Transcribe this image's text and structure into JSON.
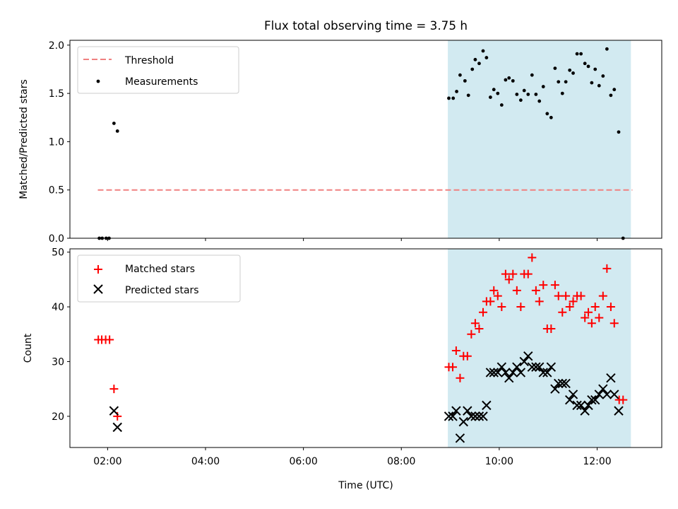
{
  "figure": {
    "title": "Flux total observing time = 3.75 h",
    "xlabel": "Time (UTC)",
    "x_ticks": [
      {
        "h": 2,
        "label": "02:00"
      },
      {
        "h": 4,
        "label": "04:00"
      },
      {
        "h": 6,
        "label": "06:00"
      },
      {
        "h": 8,
        "label": "08:00"
      },
      {
        "h": 10,
        "label": "10:00"
      },
      {
        "h": 12,
        "label": "12:00"
      }
    ],
    "xlim": [
      1.23,
      13.32
    ],
    "observing_window": {
      "start": 8.95,
      "end": 12.69,
      "color": "#add8e6"
    }
  },
  "chart_data": [
    {
      "type": "scatter",
      "id": "ratio",
      "ylabel": "Matched/Predicted stars",
      "ylim": [
        0,
        2.05
      ],
      "y_ticks": [
        {
          "v": 0,
          "label": "0.0"
        },
        {
          "v": 0.5,
          "label": "0.5"
        },
        {
          "v": 1,
          "label": "1.0"
        },
        {
          "v": 1.5,
          "label": "1.5"
        },
        {
          "v": 2,
          "label": "2.0"
        }
      ],
      "legend": {
        "position": "top-left",
        "threshold_label": "Threshold",
        "measurements_label": "Measurements"
      },
      "threshold": {
        "value": 0.5,
        "x_start": 1.8,
        "x_end": 12.72,
        "color": "#f08080"
      },
      "measurements": [
        [
          1.83,
          0
        ],
        [
          1.89,
          0
        ],
        [
          1.97,
          0
        ],
        [
          2.03,
          0
        ],
        [
          2.13,
          1.19
        ],
        [
          2.2,
          1.11
        ],
        [
          8.97,
          1.45
        ],
        [
          9.06,
          1.45
        ],
        [
          9.13,
          1.52
        ],
        [
          9.2,
          1.69
        ],
        [
          9.3,
          1.63
        ],
        [
          9.37,
          1.48
        ],
        [
          9.45,
          1.75
        ],
        [
          9.51,
          1.85
        ],
        [
          9.59,
          1.81
        ],
        [
          9.67,
          1.94
        ],
        [
          9.74,
          1.87
        ],
        [
          9.82,
          1.46
        ],
        [
          9.89,
          1.54
        ],
        [
          9.97,
          1.5
        ],
        [
          10.05,
          1.38
        ],
        [
          10.13,
          1.64
        ],
        [
          10.2,
          1.66
        ],
        [
          10.28,
          1.63
        ],
        [
          10.36,
          1.49
        ],
        [
          10.44,
          1.43
        ],
        [
          10.51,
          1.53
        ],
        [
          10.59,
          1.49
        ],
        [
          10.67,
          1.69
        ],
        [
          10.75,
          1.49
        ],
        [
          10.82,
          1.42
        ],
        [
          10.9,
          1.57
        ],
        [
          10.98,
          1.29
        ],
        [
          11.06,
          1.25
        ],
        [
          11.14,
          1.76
        ],
        [
          11.21,
          1.62
        ],
        [
          11.29,
          1.5
        ],
        [
          11.36,
          1.62
        ],
        [
          11.44,
          1.74
        ],
        [
          11.51,
          1.71
        ],
        [
          11.59,
          1.91
        ],
        [
          11.67,
          1.91
        ],
        [
          11.75,
          1.81
        ],
        [
          11.82,
          1.78
        ],
        [
          11.89,
          1.61
        ],
        [
          11.96,
          1.75
        ],
        [
          12.04,
          1.58
        ],
        [
          12.12,
          1.68
        ],
        [
          12.2,
          1.96
        ],
        [
          12.28,
          1.48
        ],
        [
          12.35,
          1.54
        ],
        [
          12.44,
          1.1
        ],
        [
          12.53,
          0
        ]
      ]
    },
    {
      "type": "scatter",
      "id": "counts",
      "ylabel": "Count",
      "ylim": [
        14.3,
        50.6
      ],
      "y_ticks": [
        {
          "v": 20,
          "label": "20"
        },
        {
          "v": 30,
          "label": "30"
        },
        {
          "v": 40,
          "label": "40"
        },
        {
          "v": 50,
          "label": "50"
        }
      ],
      "legend": {
        "position": "top-left",
        "matched_label": "Matched stars",
        "predicted_label": "Predicted stars"
      },
      "series": [
        {
          "name": "Matched stars",
          "marker": "plus",
          "color": "#ff0000",
          "points": [
            [
              1.81,
              34
            ],
            [
              1.88,
              34
            ],
            [
              1.96,
              34
            ],
            [
              2.04,
              34
            ],
            [
              2.13,
              25
            ],
            [
              2.2,
              20
            ],
            [
              8.97,
              29
            ],
            [
              9.05,
              29
            ],
            [
              9.12,
              32
            ],
            [
              9.2,
              27
            ],
            [
              9.27,
              31
            ],
            [
              9.35,
              31
            ],
            [
              9.43,
              35
            ],
            [
              9.51,
              37
            ],
            [
              9.59,
              36
            ],
            [
              9.67,
              39
            ],
            [
              9.74,
              41
            ],
            [
              9.82,
              41
            ],
            [
              9.89,
              43
            ],
            [
              9.97,
              42
            ],
            [
              10.05,
              40
            ],
            [
              10.13,
              46
            ],
            [
              10.2,
              45
            ],
            [
              10.28,
              46
            ],
            [
              10.36,
              43
            ],
            [
              10.44,
              40
            ],
            [
              10.51,
              46
            ],
            [
              10.59,
              46
            ],
            [
              10.67,
              49
            ],
            [
              10.75,
              43
            ],
            [
              10.82,
              41
            ],
            [
              10.9,
              44
            ],
            [
              10.98,
              36
            ],
            [
              11.06,
              36
            ],
            [
              11.14,
              44
            ],
            [
              11.21,
              42
            ],
            [
              11.29,
              39
            ],
            [
              11.36,
              42
            ],
            [
              11.44,
              40
            ],
            [
              11.51,
              41
            ],
            [
              11.59,
              42
            ],
            [
              11.67,
              42
            ],
            [
              11.75,
              38
            ],
            [
              11.82,
              39
            ],
            [
              11.89,
              37
            ],
            [
              11.96,
              40
            ],
            [
              12.04,
              38
            ],
            [
              12.12,
              42
            ],
            [
              12.2,
              47
            ],
            [
              12.28,
              40
            ],
            [
              12.35,
              37
            ],
            [
              12.45,
              23
            ],
            [
              12.53,
              23
            ]
          ]
        },
        {
          "name": "Predicted stars",
          "marker": "x",
          "color": "#000000",
          "points": [
            [
              2.13,
              21
            ],
            [
              2.2,
              18
            ],
            [
              8.97,
              20
            ],
            [
              9.05,
              20
            ],
            [
              9.12,
              21
            ],
            [
              9.2,
              16
            ],
            [
              9.27,
              19
            ],
            [
              9.35,
              21
            ],
            [
              9.43,
              20
            ],
            [
              9.51,
              20
            ],
            [
              9.59,
              20
            ],
            [
              9.67,
              20
            ],
            [
              9.74,
              22
            ],
            [
              9.82,
              28
            ],
            [
              9.89,
              28
            ],
            [
              9.97,
              28
            ],
            [
              10.05,
              29
            ],
            [
              10.13,
              28
            ],
            [
              10.2,
              27
            ],
            [
              10.28,
              28
            ],
            [
              10.36,
              29
            ],
            [
              10.44,
              28
            ],
            [
              10.51,
              30
            ],
            [
              10.59,
              31
            ],
            [
              10.67,
              29
            ],
            [
              10.75,
              29
            ],
            [
              10.82,
              29
            ],
            [
              10.9,
              28
            ],
            [
              10.98,
              28
            ],
            [
              11.06,
              29
            ],
            [
              11.14,
              25
            ],
            [
              11.21,
              26
            ],
            [
              11.29,
              26
            ],
            [
              11.36,
              26
            ],
            [
              11.44,
              23
            ],
            [
              11.51,
              24
            ],
            [
              11.59,
              22
            ],
            [
              11.67,
              22
            ],
            [
              11.75,
              21
            ],
            [
              11.82,
              22
            ],
            [
              11.89,
              23
            ],
            [
              11.96,
              23
            ],
            [
              12.04,
              24
            ],
            [
              12.12,
              25
            ],
            [
              12.2,
              24
            ],
            [
              12.28,
              27
            ],
            [
              12.35,
              24
            ],
            [
              12.44,
              21
            ]
          ]
        }
      ]
    }
  ]
}
